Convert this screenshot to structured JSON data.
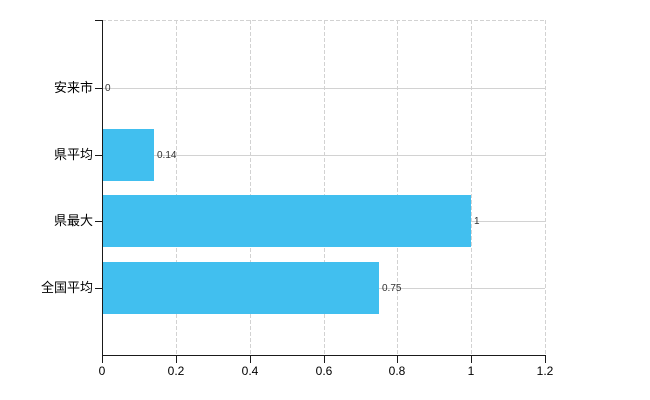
{
  "chart_data": {
    "type": "bar",
    "orientation": "horizontal",
    "title": "",
    "xlabel": "",
    "ylabel": "",
    "categories": [
      "安来市",
      "県平均",
      "県最大",
      "全国平均"
    ],
    "values": [
      0,
      0.14,
      1,
      0.75
    ],
    "value_labels": [
      "0",
      "0.14",
      "1",
      "0.75"
    ],
    "xlim": [
      0,
      1.2
    ],
    "x_ticks": [
      0,
      0.2,
      0.4,
      0.6,
      0.8,
      1,
      1.2
    ],
    "x_tick_labels": [
      "0",
      "0.2",
      "0.4",
      "0.6",
      "0.8",
      "1",
      "1.2"
    ],
    "grid": true,
    "legend": false,
    "colors": {
      "bar": "#41bfef",
      "axis": "#1a1a1a",
      "gridline": "#d2d2d2",
      "category_text": "#000000",
      "tick_text": "#000000",
      "value_text": "#333333",
      "background": "#ffffff"
    }
  }
}
